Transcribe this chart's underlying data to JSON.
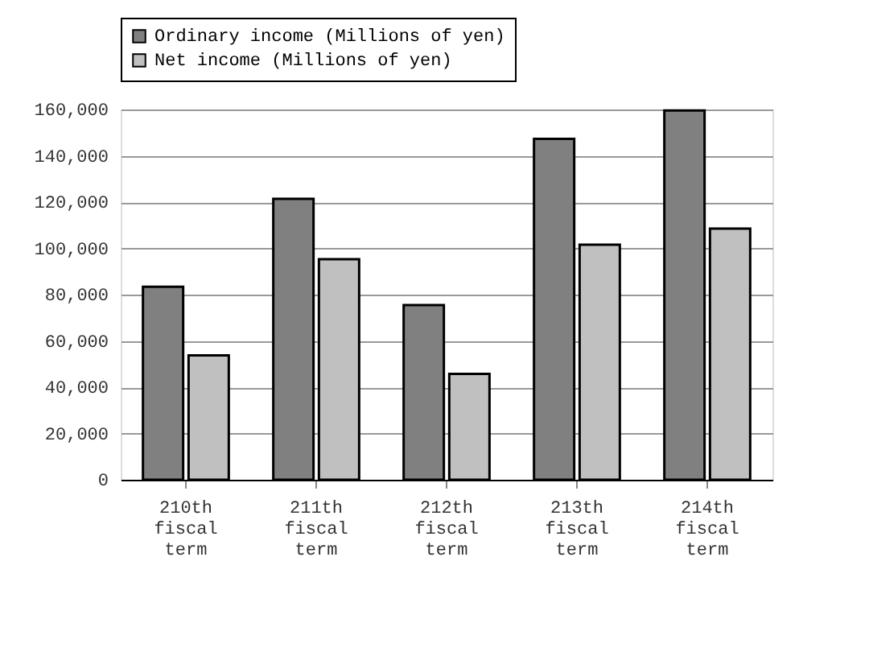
{
  "chart_data": {
    "type": "bar",
    "categories": [
      "210th fiscal term",
      "211th fiscal term",
      "212th fiscal term",
      "213th fiscal term",
      "214th fiscal term"
    ],
    "series": [
      {
        "name": "Ordinary income (Millions of yen)",
        "color": "#808080",
        "values": [
          83400,
          121400,
          75500,
          147300,
          159600
        ]
      },
      {
        "name": "Net income (Millions of yen)",
        "color": "#c0c0c0",
        "values": [
          53700,
          95300,
          45700,
          101600,
          108500
        ]
      }
    ],
    "ylim": [
      0,
      160000
    ],
    "yticks": [
      0,
      {
        "value": 20000,
        "label": "20,000"
      },
      {
        "value": 40000,
        "label": "40,000"
      },
      {
        "value": 60000,
        "label": "60,000"
      },
      {
        "value": 80000,
        "label": "80,000"
      },
      {
        "value": 100000,
        "label": "100,000"
      },
      {
        "value": 120000,
        "label": "120,000"
      },
      {
        "value": 140000,
        "label": "140,000"
      },
      {
        "value": 160000,
        "label": "160,000"
      }
    ],
    "grid": "y",
    "legend": "top"
  }
}
